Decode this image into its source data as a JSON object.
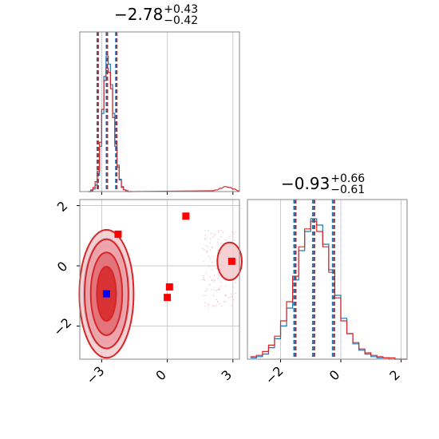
{
  "chart_data": [
    {
      "type": "histogram",
      "panel": "marginal-1",
      "title": {
        "value": "−2.78",
        "upper": "+0.43",
        "lower": "−0.42"
      },
      "xlim": [
        -4.0,
        3.3
      ],
      "grid": true,
      "series": [
        {
          "color": "#1f77b4",
          "bins": [
            -3.6,
            -3.5,
            -3.4,
            -3.3,
            -3.2,
            -3.1,
            -3.0,
            -2.9,
            -2.8,
            -2.7,
            -2.6,
            -2.5,
            -2.4,
            -2.3,
            -2.2,
            -2.1,
            -2.0,
            -1.9,
            -1.8,
            -1.7
          ],
          "counts": [
            0,
            1,
            3,
            8,
            20,
            55,
            95,
            140,
            165,
            155,
            130,
            95,
            60,
            32,
            15,
            6,
            2,
            1,
            0,
            0
          ]
        },
        {
          "color": "#d62728",
          "bins": [
            -3.6,
            -3.5,
            -3.4,
            -3.3,
            -3.2,
            -3.1,
            -3.0,
            -2.9,
            -2.8,
            -2.7,
            -2.6,
            -2.5,
            -2.4,
            -2.3,
            -2.2,
            -2.1,
            -2.0,
            -1.9,
            -1.8,
            -1.7,
            2.0,
            2.2,
            2.4,
            2.6,
            2.8,
            3.0,
            3.2
          ],
          "counts": [
            0,
            2,
            5,
            12,
            25,
            60,
            100,
            135,
            150,
            145,
            125,
            90,
            55,
            30,
            14,
            5,
            2,
            1,
            0,
            0,
            1,
            2,
            4,
            6,
            5,
            3,
            1
          ]
        }
      ],
      "quantile_lines": [
        -3.2,
        -2.78,
        -2.35
      ]
    },
    {
      "type": "histogram",
      "panel": "marginal-2",
      "title": {
        "value": "−0.93",
        "upper": "+0.66",
        "lower": "−0.61"
      },
      "xlim": [
        -3.1,
        2.2
      ],
      "xticks": [
        "−2",
        "0",
        "2"
      ],
      "grid": true,
      "series": [
        {
          "color": "#1f77b4",
          "bins": [
            -3.0,
            -2.8,
            -2.6,
            -2.4,
            -2.2,
            -2.0,
            -1.8,
            -1.6,
            -1.4,
            -1.2,
            -1.0,
            -0.8,
            -0.6,
            -0.4,
            -0.2,
            0.0,
            0.2,
            0.4,
            0.6,
            0.8,
            1.0,
            1.2,
            1.4,
            1.6,
            1.8,
            2.0
          ],
          "counts": [
            1,
            2,
            4,
            9,
            16,
            26,
            40,
            62,
            85,
            100,
            110,
            105,
            90,
            70,
            50,
            32,
            20,
            12,
            7,
            4,
            2,
            1,
            1,
            0,
            0,
            0
          ]
        },
        {
          "color": "#d62728",
          "bins": [
            -3.0,
            -2.8,
            -2.6,
            -2.4,
            -2.2,
            -2.0,
            -1.8,
            -1.6,
            -1.4,
            -1.2,
            -1.0,
            -0.8,
            -0.6,
            -0.4,
            -0.2,
            0.0,
            0.2,
            0.4,
            0.6,
            0.8,
            1.0,
            1.2,
            1.4,
            1.6,
            1.8,
            2.0
          ],
          "counts": [
            2,
            3,
            6,
            11,
            18,
            30,
            45,
            65,
            88,
            102,
            108,
            100,
            88,
            68,
            48,
            30,
            20,
            13,
            8,
            5,
            3,
            2,
            1,
            1,
            0,
            0
          ]
        }
      ],
      "quantile_lines": [
        -1.55,
        -0.93,
        -0.27
      ]
    },
    {
      "type": "scatter",
      "panel": "joint-2d",
      "xlim": [
        -4.0,
        3.3
      ],
      "ylim": [
        -3.1,
        2.2
      ],
      "xticks": [
        "−3",
        "0",
        "3"
      ],
      "yticks": [
        "−2",
        "0",
        "2"
      ],
      "grid": true,
      "contours": [
        {
          "color": "#1f77b4",
          "center": [
            -2.78,
            -0.93
          ],
          "levels": [
            [
              0.55,
              1.55
            ],
            [
              0.45,
              1.35
            ],
            [
              0.35,
              1.1
            ],
            [
              0.22,
              0.75
            ]
          ]
        },
        {
          "color": "#d62728",
          "center": [
            -2.78,
            -0.93
          ],
          "levels": [
            [
              0.62,
              1.7
            ],
            [
              0.5,
              1.45
            ],
            [
              0.36,
              1.1
            ],
            [
              0.22,
              0.72
            ]
          ]
        },
        {
          "color": "#d62728",
          "center": [
            2.85,
            0.15
          ],
          "levels": [
            [
              0.28,
              0.5
            ]
          ]
        }
      ],
      "markers": [
        {
          "color": "#ff0000",
          "x": -2.25,
          "y": 1.05
        },
        {
          "color": "#ff0000",
          "x": 0.85,
          "y": 1.65
        },
        {
          "color": "#ff0000",
          "x": 0.1,
          "y": -0.7
        },
        {
          "color": "#ff0000",
          "x": 0.0,
          "y": -1.05
        },
        {
          "color": "#ff0000",
          "x": 2.95,
          "y": 0.15
        },
        {
          "color": "#0000ff",
          "x": -2.78,
          "y": -0.93
        }
      ]
    }
  ]
}
